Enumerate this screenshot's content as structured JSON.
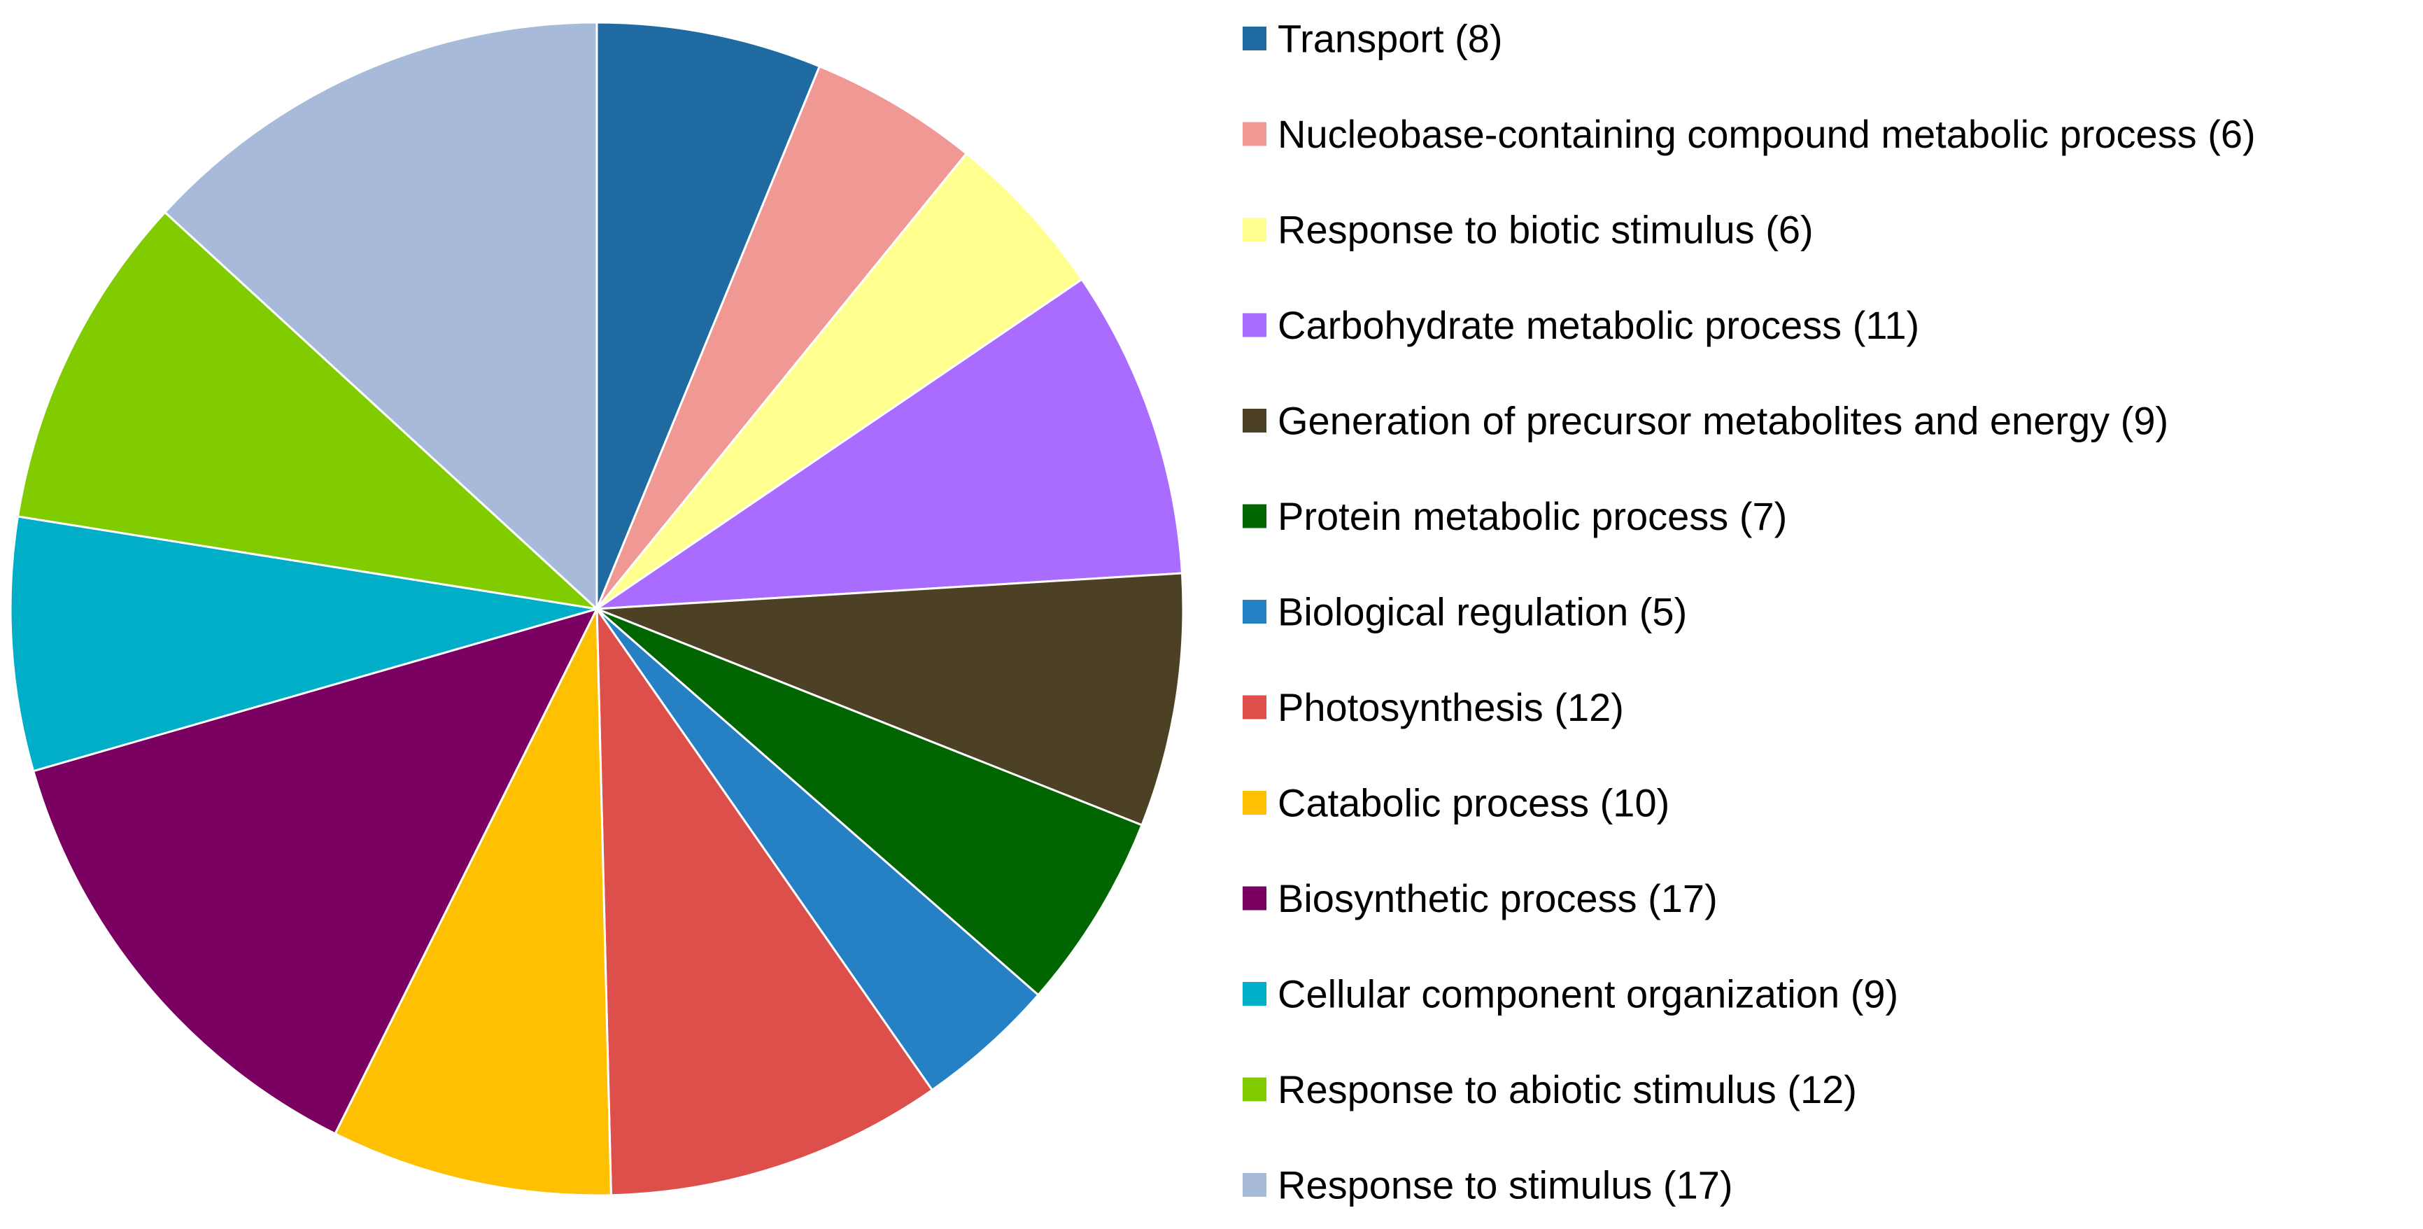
{
  "chart_data": {
    "type": "pie",
    "start_angle": "12 o'clock",
    "direction": "clockwise",
    "legend_position": "right",
    "slices": [
      {
        "label": "Transport",
        "value": 8,
        "legend_text": "Transport (8)",
        "color": "#1F6AA0"
      },
      {
        "label": "Nucleobase-containing compound metabolic process",
        "value": 6,
        "legend_text": "Nucleobase-containing compound metabolic process (6)",
        "color": "#EF9894"
      },
      {
        "label": "Response to biotic stimulus",
        "value": 6,
        "legend_text": "Response to biotic stimulus (6)",
        "color": "#FFFF8F"
      },
      {
        "label": "Carbohydrate metabolic process",
        "value": 11,
        "legend_text": "Carbohydrate metabolic process (11)",
        "color": "#AA6BFF"
      },
      {
        "label": "Generation of precursor metabolites and energy",
        "value": 9,
        "legend_text": "Generation of precursor metabolites and energy (9)",
        "color": "#4D4125"
      },
      {
        "label": "Protein metabolic process",
        "value": 7,
        "legend_text": "Protein metabolic process (7)",
        "color": "#016501"
      },
      {
        "label": "Biological regulation",
        "value": 5,
        "legend_text": "Biological regulation (5)",
        "color": "#2581C3"
      },
      {
        "label": "Photosynthesis",
        "value": 12,
        "legend_text": "Photosynthesis (12)",
        "color": "#DD4F4B"
      },
      {
        "label": "Catabolic process",
        "value": 10,
        "legend_text": "Catabolic process (10)",
        "color": "#FEC000"
      },
      {
        "label": "Biosynthetic process",
        "value": 17,
        "legend_text": "Biosynthetic process (17)",
        "color": "#7A0062"
      },
      {
        "label": "Cellular component organization",
        "value": 9,
        "legend_text": "Cellular component organization (9)",
        "color": "#00AEC8"
      },
      {
        "label": "Response to abiotic stimulus",
        "value": 12,
        "legend_text": "Response to abiotic stimulus (12)",
        "color": "#80CC00"
      },
      {
        "label": "Response to stimulus",
        "value": 17,
        "legend_text": "Response to stimulus (17)",
        "color": "#A7BAD9"
      }
    ]
  }
}
